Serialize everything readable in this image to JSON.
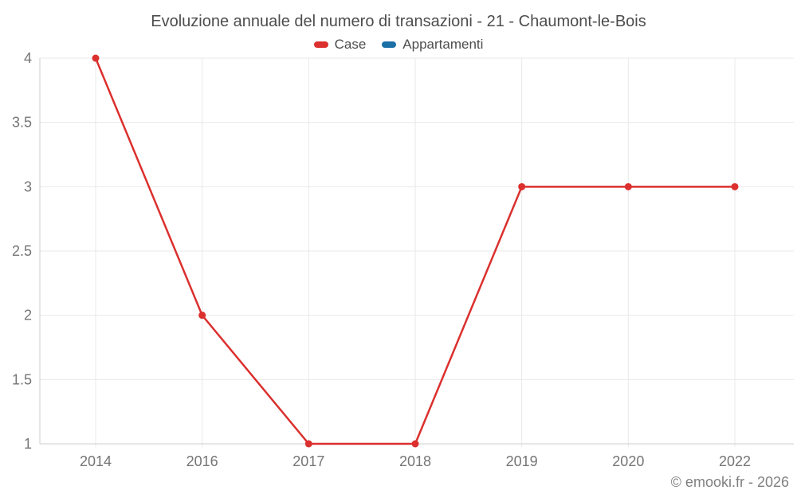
{
  "header": {
    "title": "Evoluzione annuale del numero di transazioni - 21 - Chaumont-le-Bois"
  },
  "legend": {
    "items": [
      {
        "label": "Case",
        "color": "#db302e"
      },
      {
        "label": "Appartamenti",
        "color": "#1b70a6"
      }
    ]
  },
  "footer": {
    "watermark": "© emooki.fr - 2026"
  },
  "chart_data": {
    "type": "line",
    "title": "Evoluzione annuale del numero di transazioni - 21 - Chaumont-le-Bois",
    "categories": [
      "2014",
      "2016",
      "2017",
      "2018",
      "2019",
      "2020",
      "2022"
    ],
    "series": [
      {
        "name": "Case",
        "color": "#db302e",
        "values": [
          4,
          2,
          1,
          1,
          3,
          3,
          3
        ]
      },
      {
        "name": "Appartamenti",
        "color": "#1b70a6",
        "values": []
      }
    ],
    "xlabel": "",
    "ylabel": "",
    "ylim": [
      1,
      4
    ],
    "yticks": [
      1,
      1.5,
      2,
      2.5,
      3,
      3.5,
      4
    ],
    "grid": true,
    "legend_position": "top",
    "marker": "circle"
  },
  "style": {
    "grid_color": "#e9e9e9",
    "axis_color": "#cccccc",
    "tick_label_color": "#757575",
    "title_color": "#4d4d4d",
    "watermark_color": "#808080"
  }
}
